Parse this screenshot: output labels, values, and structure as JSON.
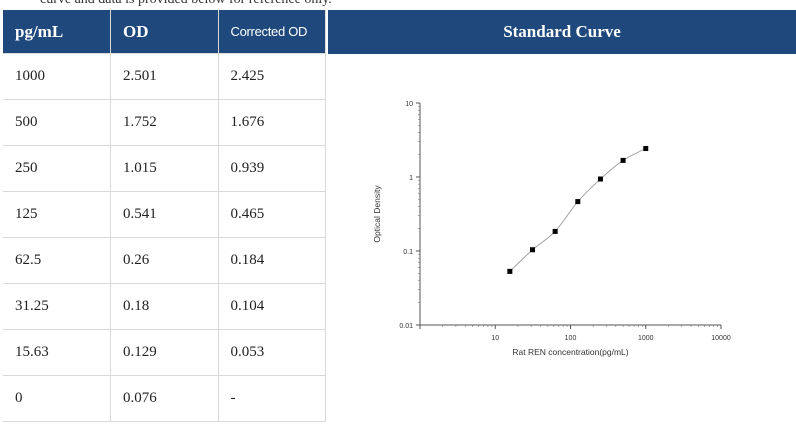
{
  "caption": "curve and data is provided below for reference only.",
  "table": {
    "headers": [
      "pg/mL",
      "OD",
      "Corrected OD"
    ],
    "rows": [
      [
        "1000",
        "2.501",
        "2.425"
      ],
      [
        "500",
        "1.752",
        "1.676"
      ],
      [
        "250",
        "1.015",
        "0.939"
      ],
      [
        "125",
        "0.541",
        "0.465"
      ],
      [
        "62.5",
        "0.26",
        "0.184"
      ],
      [
        "31.25",
        "0.18",
        "0.104"
      ],
      [
        "15.63",
        "0.129",
        "0.053"
      ],
      [
        "0",
        "0.076",
        "-"
      ]
    ]
  },
  "curve_header": "Standard Curve",
  "chart_data": {
    "type": "scatter",
    "title": "",
    "xlabel": "Rat REN concentration(pg/mL)",
    "ylabel": "Optical Density",
    "x_scale": "log",
    "y_scale": "log",
    "xlim": [
      1,
      10000
    ],
    "ylim": [
      0.01,
      10
    ],
    "x_ticks": [
      "10",
      "100",
      "1000",
      "10000"
    ],
    "y_ticks": [
      "0.01",
      "0.1",
      "1",
      "10"
    ],
    "x": [
      15.63,
      31.25,
      62.5,
      125,
      250,
      500,
      1000
    ],
    "y": [
      0.053,
      0.104,
      0.184,
      0.465,
      0.939,
      1.676,
      2.425
    ],
    "fit_curve": true,
    "grid": false,
    "marker_color": "#000000",
    "curve_color": "#9a9a9a"
  }
}
